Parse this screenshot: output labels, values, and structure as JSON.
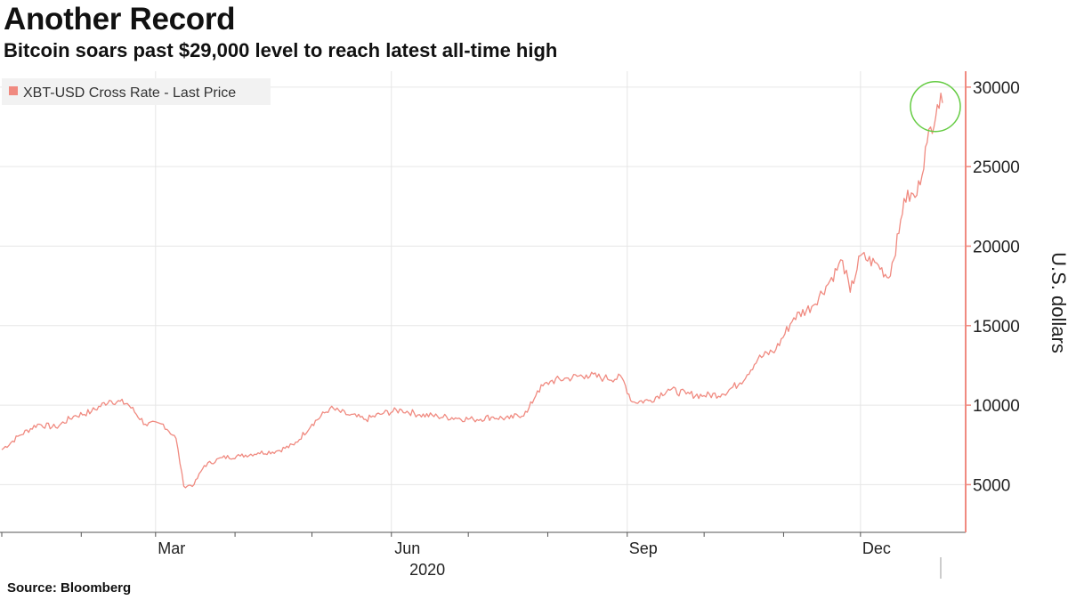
{
  "header": {
    "title": "Another Record",
    "subtitle": "Bitcoin soars past $29,000 level to reach latest all-time high"
  },
  "footer": {
    "source": "Source: Bloomberg"
  },
  "colors": {
    "series": "#f08a80",
    "axis": "#f08a80",
    "grid": "#e6e6e6",
    "highlight": "#66cc44"
  },
  "chart_data": {
    "type": "line",
    "ylabel": "U.S. dollars",
    "ylim": [
      2000,
      31000
    ],
    "yticks": [
      5000,
      10000,
      15000,
      20000,
      25000,
      30000
    ],
    "x_tick_labels": [
      "Mar",
      "Jun",
      "Sep",
      "Dec"
    ],
    "x_year_label": "2020",
    "legend": {
      "label": "XBT-USD Cross Rate - Last Price",
      "position": "top-left"
    },
    "grid": true,
    "highlight": {
      "shape": "circle",
      "date": "2021-01-02",
      "value": 29000
    },
    "series": [
      {
        "name": "XBT-USD Cross Rate - Last Price",
        "points": [
          [
            "2020-01-01",
            7200
          ],
          [
            "2020-01-08",
            8100
          ],
          [
            "2020-01-15",
            8800
          ],
          [
            "2020-01-22",
            8600
          ],
          [
            "2020-01-29",
            9300
          ],
          [
            "2020-02-05",
            9600
          ],
          [
            "2020-02-12",
            10300
          ],
          [
            "2020-02-19",
            10100
          ],
          [
            "2020-02-26",
            8800
          ],
          [
            "2020-03-04",
            8800
          ],
          [
            "2020-03-09",
            7900
          ],
          [
            "2020-03-12",
            4900
          ],
          [
            "2020-03-16",
            5000
          ],
          [
            "2020-03-20",
            6200
          ],
          [
            "2020-03-27",
            6700
          ],
          [
            "2020-04-03",
            6800
          ],
          [
            "2020-04-10",
            7000
          ],
          [
            "2020-04-17",
            7100
          ],
          [
            "2020-04-24",
            7500
          ],
          [
            "2020-05-01",
            8800
          ],
          [
            "2020-05-08",
            9800
          ],
          [
            "2020-05-15",
            9400
          ],
          [
            "2020-05-22",
            9100
          ],
          [
            "2020-05-29",
            9500
          ],
          [
            "2020-06-05",
            9700
          ],
          [
            "2020-06-12",
            9400
          ],
          [
            "2020-06-19",
            9300
          ],
          [
            "2020-06-26",
            9200
          ],
          [
            "2020-07-03",
            9100
          ],
          [
            "2020-07-10",
            9250
          ],
          [
            "2020-07-17",
            9150
          ],
          [
            "2020-07-24",
            9550
          ],
          [
            "2020-07-28",
            10900
          ],
          [
            "2020-08-02",
            11500
          ],
          [
            "2020-08-09",
            11700
          ],
          [
            "2020-08-16",
            11900
          ],
          [
            "2020-08-23",
            11700
          ],
          [
            "2020-08-30",
            11700
          ],
          [
            "2020-09-03",
            10200
          ],
          [
            "2020-09-10",
            10300
          ],
          [
            "2020-09-17",
            11000
          ],
          [
            "2020-09-24",
            10700
          ],
          [
            "2020-10-01",
            10600
          ],
          [
            "2020-10-08",
            10700
          ],
          [
            "2020-10-15",
            11400
          ],
          [
            "2020-10-22",
            12900
          ],
          [
            "2020-10-29",
            13500
          ],
          [
            "2020-11-05",
            15500
          ],
          [
            "2020-11-12",
            16200
          ],
          [
            "2020-11-19",
            17800
          ],
          [
            "2020-11-24",
            19100
          ],
          [
            "2020-11-27",
            17100
          ],
          [
            "2020-12-01",
            19400
          ],
          [
            "2020-12-08",
            18800
          ],
          [
            "2020-12-12",
            18000
          ],
          [
            "2020-12-16",
            20800
          ],
          [
            "2020-12-18",
            23000
          ],
          [
            "2020-12-23",
            23200
          ],
          [
            "2020-12-27",
            26500
          ],
          [
            "2020-12-31",
            28900
          ],
          [
            "2021-01-02",
            29000
          ]
        ]
      }
    ]
  }
}
